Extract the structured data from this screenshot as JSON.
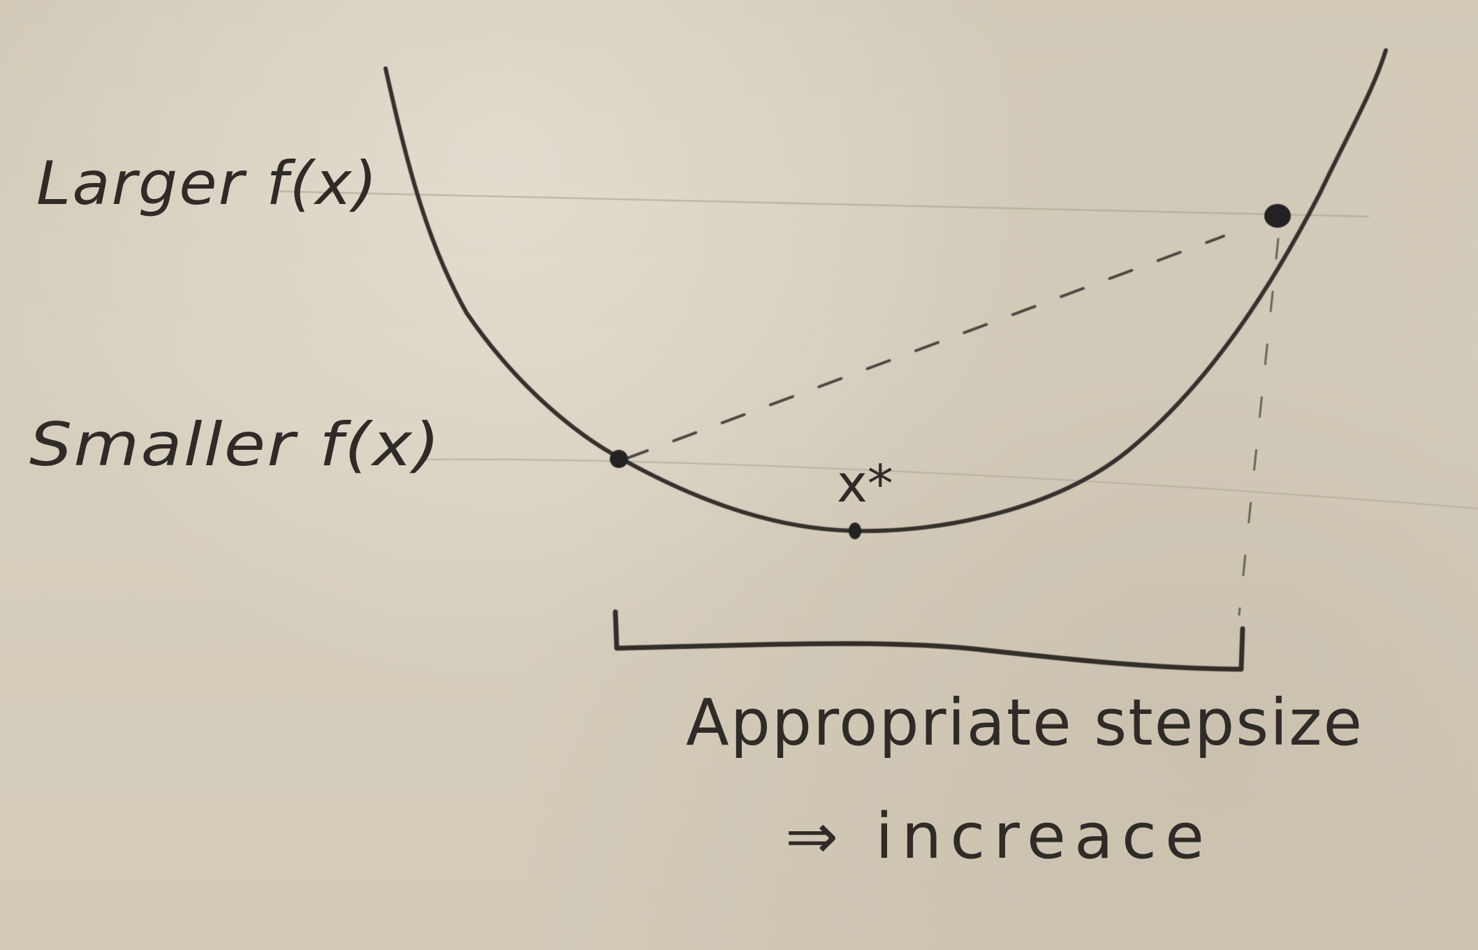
{
  "labels": {
    "larger": "Larger f(x)",
    "smaller": "Smaller f(x)",
    "optimum": "x*",
    "caption_line1": "Appropriate stepsize",
    "caption_line2": "⇒ increace"
  },
  "colors": {
    "paper": "#d3cab8",
    "ink": "#2e2b28",
    "light_guide": "#b8b0a2"
  }
}
